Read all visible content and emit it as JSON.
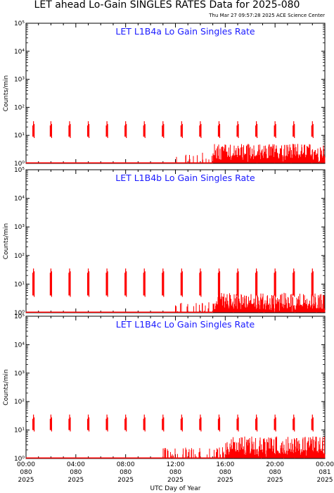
{
  "header": {
    "title": "LET ahead Lo-Gain SINGLES RATES Data for 2025-080",
    "credit": "Thu Mar 27 09:57:28 2025 ACE Science Center"
  },
  "chart_data": {
    "type": "line",
    "yscale": "log",
    "ylim": [
      1,
      100000
    ],
    "xlim": [
      0,
      24
    ],
    "xlabel": "UTC Day of Year",
    "ylabel": "Counts/min",
    "y_tick_labels": [
      "10⁰",
      "10¹",
      "10²",
      "10³",
      "10⁴",
      "10⁵"
    ],
    "y_tick_values": [
      1,
      10,
      100,
      1000,
      10000,
      100000
    ],
    "x_ticks": [
      {
        "time": "00:00",
        "doy": "080",
        "year": "2025"
      },
      {
        "time": "04:00",
        "doy": "080",
        "year": "2025"
      },
      {
        "time": "08:00",
        "doy": "080",
        "year": "2025"
      },
      {
        "time": "12:00",
        "doy": "080",
        "year": "2025"
      },
      {
        "time": "16:00",
        "doy": "080",
        "year": "2025"
      },
      {
        "time": "20:00",
        "doy": "080",
        "year": "2025"
      },
      {
        "time": "00:00",
        "doy": "081",
        "year": "2025"
      }
    ],
    "x_tick_hours": [
      0,
      4,
      8,
      12,
      16,
      20,
      24
    ],
    "series_color": "#ff0000",
    "panels": [
      {
        "name": "LET L1B4a Lo Gain Singles Rate",
        "spike_hours": [
          0.6,
          2.0,
          3.5,
          5.0,
          6.5,
          8.0,
          9.5,
          11.0,
          12.5,
          14.0,
          15.5,
          17.0,
          18.5,
          20.0,
          21.5,
          23.0
        ],
        "spike_peak": 32,
        "spike_base": 9,
        "baseline": 1.0,
        "noise_start_hours": 11.5,
        "noise_dense_start_hours": 15.0,
        "noise_max": 5
      },
      {
        "name": "LET L1B4b Lo Gain Singles Rate",
        "spike_hours": [
          0.6,
          2.0,
          3.5,
          5.0,
          6.5,
          8.0,
          9.5,
          11.0,
          12.5,
          14.0,
          15.5,
          17.0,
          18.5,
          20.0,
          21.5,
          23.0
        ],
        "spike_peak": 35,
        "spike_base": 4,
        "baseline": 1.0,
        "noise_start_hours": 12.0,
        "noise_dense_start_hours": 15.0,
        "noise_max": 5
      },
      {
        "name": "LET L1B4c Lo Gain Singles Rate",
        "spike_hours": [
          0.6,
          2.0,
          3.5,
          5.0,
          6.5,
          8.0,
          9.5,
          11.0,
          12.5,
          14.0,
          15.5,
          17.0,
          18.5,
          20.0,
          21.5,
          23.0
        ],
        "spike_peak": 35,
        "spike_base": 10,
        "baseline": 1.0,
        "noise_start_hours": 11.0,
        "noise_dense_start_hours": 16.0,
        "noise_max": 6
      }
    ]
  }
}
